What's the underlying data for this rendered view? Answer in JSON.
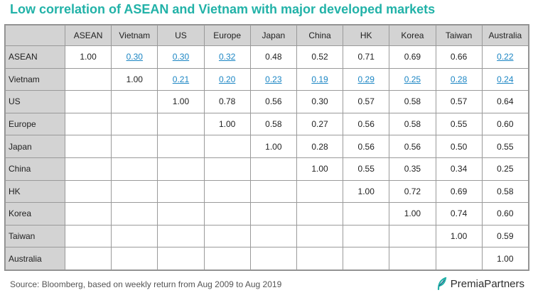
{
  "title": "Low correlation of ASEAN and Vietnam with major developed markets",
  "table": {
    "columns": [
      "ASEAN",
      "Vietnam",
      "US",
      "Europe",
      "Japan",
      "China",
      "HK",
      "Korea",
      "Taiwan",
      "Australia"
    ],
    "rows": [
      {
        "label": "ASEAN",
        "cells": [
          "1.00",
          "0.30",
          "0.30",
          "0.32",
          "0.48",
          "0.52",
          "0.71",
          "0.69",
          "0.66",
          "0.22"
        ]
      },
      {
        "label": "Vietnam",
        "cells": [
          "",
          "1.00",
          "0.21",
          "0.20",
          "0.23",
          "0.19",
          "0.29",
          "0.25",
          "0.28",
          "0.24"
        ]
      },
      {
        "label": "US",
        "cells": [
          "",
          "",
          "1.00",
          "0.78",
          "0.56",
          "0.30",
          "0.57",
          "0.58",
          "0.57",
          "0.64"
        ]
      },
      {
        "label": "Europe",
        "cells": [
          "",
          "",
          "",
          "1.00",
          "0.58",
          "0.27",
          "0.56",
          "0.58",
          "0.55",
          "0.60"
        ]
      },
      {
        "label": "Japan",
        "cells": [
          "",
          "",
          "",
          "",
          "1.00",
          "0.28",
          "0.56",
          "0.56",
          "0.50",
          "0.55"
        ]
      },
      {
        "label": "China",
        "cells": [
          "",
          "",
          "",
          "",
          "",
          "1.00",
          "0.55",
          "0.35",
          "0.34",
          "0.25"
        ]
      },
      {
        "label": "HK",
        "cells": [
          "",
          "",
          "",
          "",
          "",
          "",
          "1.00",
          "0.72",
          "0.69",
          "0.58"
        ]
      },
      {
        "label": "Korea",
        "cells": [
          "",
          "",
          "",
          "",
          "",
          "",
          "",
          "1.00",
          "0.74",
          "0.60"
        ]
      },
      {
        "label": "Taiwan",
        "cells": [
          "",
          "",
          "",
          "",
          "",
          "",
          "",
          "",
          "1.00",
          "0.59"
        ]
      },
      {
        "label": "Australia",
        "cells": [
          "",
          "",
          "",
          "",
          "",
          "",
          "",
          "",
          "",
          "1.00"
        ]
      }
    ],
    "highlighted_cells": [
      [
        0,
        1
      ],
      [
        0,
        2
      ],
      [
        0,
        3
      ],
      [
        0,
        9
      ],
      [
        1,
        2
      ],
      [
        1,
        3
      ],
      [
        1,
        4
      ],
      [
        1,
        5
      ],
      [
        1,
        6
      ],
      [
        1,
        7
      ],
      [
        1,
        8
      ],
      [
        1,
        9
      ]
    ]
  },
  "source": "Source: Bloomberg, based on weekly return from Aug 2009 to Aug 2019",
  "brand": {
    "name": "PremiaPartners",
    "icon": "premia-leaf-icon"
  },
  "colors": {
    "title": "#22b2a8",
    "highlight": "#1c86c4",
    "header_bg": "#d3d3d3",
    "grid": "#9a9a9a"
  }
}
